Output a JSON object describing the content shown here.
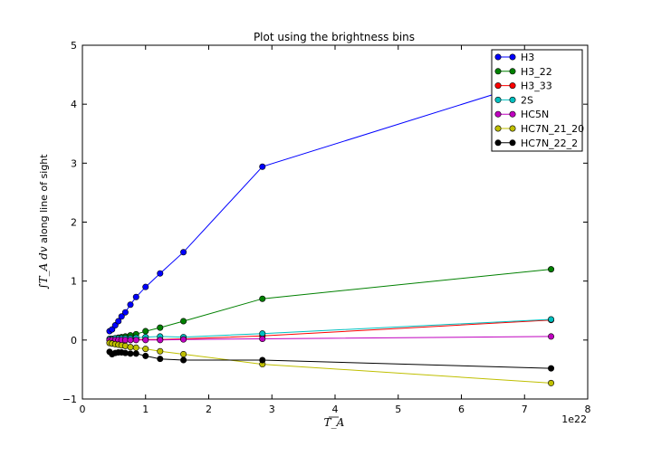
{
  "chart_data": {
    "type": "line",
    "title": "Plot using the brightness bins",
    "xlabel": "T_A",
    "ylabel_math": "∫T_A dv",
    "ylabel_text": " along line of sight",
    "x_offset_label": "1e22",
    "xlim": [
      0,
      8
    ],
    "ylim": [
      -1,
      5
    ],
    "xticks": [
      "0",
      "1",
      "2",
      "3",
      "4",
      "5",
      "6",
      "7",
      "8"
    ],
    "yticks": [
      "−1",
      "0",
      "1",
      "2",
      "3",
      "4",
      "5"
    ],
    "grid": false,
    "legend_position": "top-right",
    "marker": "circle",
    "x": [
      0.43,
      0.47,
      0.52,
      0.57,
      0.62,
      0.68,
      0.76,
      0.85,
      1.0,
      1.23,
      1.6,
      2.85,
      7.42
    ],
    "series": [
      {
        "name": "H3",
        "color": "#0000ff",
        "values": [
          0.15,
          0.18,
          0.25,
          0.32,
          0.4,
          0.47,
          0.6,
          0.73,
          0.9,
          1.13,
          1.49,
          2.94,
          4.47
        ]
      },
      {
        "name": "H3_22",
        "color": "#008000",
        "values": [
          0.01,
          0.02,
          0.03,
          0.04,
          0.05,
          0.06,
          0.08,
          0.1,
          0.15,
          0.21,
          0.32,
          0.7,
          1.2
        ]
      },
      {
        "name": "H3_33",
        "color": "#ff0000",
        "values": [
          0.0,
          0.0,
          0.0,
          0.0,
          0.0,
          0.0,
          0.0,
          0.01,
          0.01,
          0.01,
          0.02,
          0.07,
          0.34
        ]
      },
      {
        "name": "2S",
        "color": "#00bfbf",
        "values": [
          0.02,
          0.02,
          0.03,
          0.03,
          0.03,
          0.03,
          0.03,
          0.04,
          0.05,
          0.06,
          0.05,
          0.11,
          0.35
        ]
      },
      {
        "name": "HC5N",
        "color": "#bf00bf",
        "values": [
          0.0,
          0.0,
          0.0,
          0.0,
          0.0,
          0.0,
          0.0,
          0.0,
          0.0,
          0.0,
          0.01,
          0.02,
          0.06
        ]
      },
      {
        "name": "HC7N_21_20",
        "color": "#bfbf00",
        "values": [
          -0.05,
          -0.06,
          -0.07,
          -0.08,
          -0.09,
          -0.1,
          -0.12,
          -0.13,
          -0.15,
          -0.19,
          -0.24,
          -0.41,
          -0.73
        ]
      },
      {
        "name": "HC7N_22_2",
        "color": "#000000",
        "values": [
          -0.2,
          -0.24,
          -0.22,
          -0.21,
          -0.21,
          -0.22,
          -0.23,
          -0.23,
          -0.27,
          -0.32,
          -0.34,
          -0.34,
          -0.48
        ]
      }
    ]
  }
}
